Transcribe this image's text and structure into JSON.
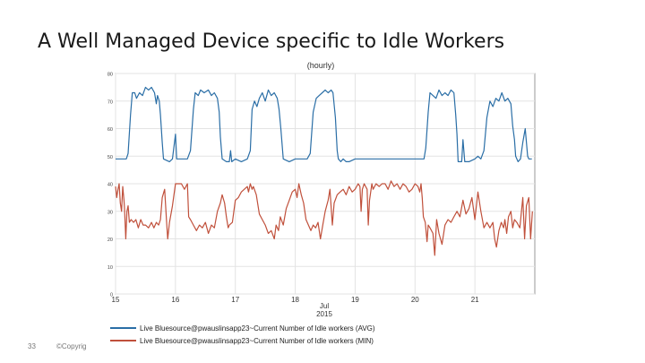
{
  "slide": {
    "title": "A Well Managed Device specific to Idle Workers",
    "page_number": "33",
    "copyright": "©Copyrig"
  },
  "chart_data": {
    "type": "line",
    "title": "(hourly)",
    "xlabel_month": "Jul",
    "xlabel_year": "2015",
    "ylabel": "",
    "ylim": [
      0,
      80
    ],
    "yticks": [
      0,
      10,
      20,
      30,
      40,
      50,
      60,
      70,
      80
    ],
    "xlim": [
      15,
      22
    ],
    "xticks": [
      15,
      16,
      17,
      18,
      19,
      20,
      21
    ],
    "grid": true,
    "legend_position": "bottom",
    "series": [
      {
        "name": "Live Bluesource@pwauslinsapp23~Current Number of Idle workers (AVG)",
        "color": "#2a6ea6",
        "points": [
          [
            15.0,
            49
          ],
          [
            15.18,
            49
          ],
          [
            15.21,
            51
          ],
          [
            15.25,
            65
          ],
          [
            15.28,
            73
          ],
          [
            15.32,
            73
          ],
          [
            15.35,
            71
          ],
          [
            15.4,
            73
          ],
          [
            15.45,
            72
          ],
          [
            15.5,
            75
          ],
          [
            15.55,
            74
          ],
          [
            15.6,
            75
          ],
          [
            15.65,
            73
          ],
          [
            15.68,
            69
          ],
          [
            15.7,
            72
          ],
          [
            15.73,
            70
          ],
          [
            15.75,
            65
          ],
          [
            15.78,
            55
          ],
          [
            15.8,
            49
          ],
          [
            15.9,
            48
          ],
          [
            15.95,
            49
          ],
          [
            16.0,
            58
          ],
          [
            16.02,
            49
          ],
          [
            16.1,
            49
          ],
          [
            16.2,
            49
          ],
          [
            16.25,
            52
          ],
          [
            16.3,
            67
          ],
          [
            16.33,
            73
          ],
          [
            16.38,
            72
          ],
          [
            16.42,
            74
          ],
          [
            16.48,
            73
          ],
          [
            16.55,
            74
          ],
          [
            16.6,
            72
          ],
          [
            16.65,
            73
          ],
          [
            16.7,
            71
          ],
          [
            16.73,
            66
          ],
          [
            16.75,
            57
          ],
          [
            16.78,
            49
          ],
          [
            16.85,
            48
          ],
          [
            16.9,
            48
          ],
          [
            16.92,
            52
          ],
          [
            16.94,
            48
          ],
          [
            17.0,
            49
          ],
          [
            17.1,
            48
          ],
          [
            17.2,
            49
          ],
          [
            17.25,
            52
          ],
          [
            17.28,
            67
          ],
          [
            17.32,
            70
          ],
          [
            17.36,
            68
          ],
          [
            17.4,
            71
          ],
          [
            17.45,
            73
          ],
          [
            17.5,
            70
          ],
          [
            17.55,
            74
          ],
          [
            17.6,
            72
          ],
          [
            17.65,
            73
          ],
          [
            17.7,
            71
          ],
          [
            17.73,
            67
          ],
          [
            17.76,
            60
          ],
          [
            17.8,
            49
          ],
          [
            17.9,
            48
          ],
          [
            18.0,
            49
          ],
          [
            18.1,
            49
          ],
          [
            18.2,
            49
          ],
          [
            18.25,
            51
          ],
          [
            18.3,
            66
          ],
          [
            18.35,
            71
          ],
          [
            18.4,
            72
          ],
          [
            18.45,
            73
          ],
          [
            18.5,
            74
          ],
          [
            18.55,
            73
          ],
          [
            18.6,
            74
          ],
          [
            18.63,
            73
          ],
          [
            18.67,
            64
          ],
          [
            18.7,
            52
          ],
          [
            18.72,
            49
          ],
          [
            18.76,
            48
          ],
          [
            18.8,
            49
          ],
          [
            18.85,
            48
          ],
          [
            18.9,
            48
          ],
          [
            19.0,
            49
          ],
          [
            19.5,
            49
          ],
          [
            20.0,
            49
          ],
          [
            20.1,
            49
          ],
          [
            20.15,
            49
          ],
          [
            20.18,
            53
          ],
          [
            20.22,
            66
          ],
          [
            20.25,
            73
          ],
          [
            20.3,
            72
          ],
          [
            20.35,
            71
          ],
          [
            20.4,
            74
          ],
          [
            20.45,
            72
          ],
          [
            20.5,
            73
          ],
          [
            20.55,
            72
          ],
          [
            20.6,
            74
          ],
          [
            20.65,
            73
          ],
          [
            20.68,
            65
          ],
          [
            20.7,
            58
          ],
          [
            20.72,
            48
          ],
          [
            20.78,
            48
          ],
          [
            20.8,
            56
          ],
          [
            20.83,
            48
          ],
          [
            20.9,
            48
          ],
          [
            21.0,
            49
          ],
          [
            21.05,
            50
          ],
          [
            21.1,
            49
          ],
          [
            21.15,
            52
          ],
          [
            21.2,
            64
          ],
          [
            21.25,
            70
          ],
          [
            21.3,
            68
          ],
          [
            21.35,
            71
          ],
          [
            21.4,
            70
          ],
          [
            21.45,
            73
          ],
          [
            21.5,
            70
          ],
          [
            21.55,
            71
          ],
          [
            21.6,
            69
          ],
          [
            21.63,
            61
          ],
          [
            21.66,
            56
          ],
          [
            21.68,
            50
          ],
          [
            21.72,
            48
          ],
          [
            21.76,
            49
          ],
          [
            21.8,
            55
          ],
          [
            21.84,
            60
          ],
          [
            21.88,
            50
          ],
          [
            21.9,
            49
          ],
          [
            21.95,
            49
          ]
        ]
      },
      {
        "name": "Live Bluesource@pwauslinsapp23~Current Number of Idle workers (MIN)",
        "color": "#c0503b",
        "points": [
          [
            15.0,
            39
          ],
          [
            15.02,
            35
          ],
          [
            15.04,
            38
          ],
          [
            15.06,
            40
          ],
          [
            15.08,
            33
          ],
          [
            15.1,
            30
          ],
          [
            15.12,
            39
          ],
          [
            15.14,
            34
          ],
          [
            15.15,
            31
          ],
          [
            15.17,
            20
          ],
          [
            15.19,
            30
          ],
          [
            15.21,
            32
          ],
          [
            15.23,
            26
          ],
          [
            15.26,
            27
          ],
          [
            15.3,
            26
          ],
          [
            15.34,
            27
          ],
          [
            15.38,
            24
          ],
          [
            15.42,
            27
          ],
          [
            15.46,
            25
          ],
          [
            15.5,
            25
          ],
          [
            15.55,
            24
          ],
          [
            15.6,
            26
          ],
          [
            15.64,
            24
          ],
          [
            15.68,
            26
          ],
          [
            15.72,
            25
          ],
          [
            15.75,
            27
          ],
          [
            15.78,
            35
          ],
          [
            15.82,
            38
          ],
          [
            15.85,
            27
          ],
          [
            15.87,
            20
          ],
          [
            15.9,
            26
          ],
          [
            15.95,
            32
          ],
          [
            16.0,
            40
          ],
          [
            16.05,
            40
          ],
          [
            16.1,
            40
          ],
          [
            16.15,
            38
          ],
          [
            16.2,
            40
          ],
          [
            16.22,
            28
          ],
          [
            16.25,
            27
          ],
          [
            16.3,
            25
          ],
          [
            16.35,
            23
          ],
          [
            16.4,
            25
          ],
          [
            16.45,
            24
          ],
          [
            16.5,
            26
          ],
          [
            16.55,
            22
          ],
          [
            16.6,
            25
          ],
          [
            16.65,
            24
          ],
          [
            16.7,
            30
          ],
          [
            16.75,
            33
          ],
          [
            16.78,
            36
          ],
          [
            16.82,
            33
          ],
          [
            16.85,
            28
          ],
          [
            16.88,
            24
          ],
          [
            16.9,
            25
          ],
          [
            16.95,
            26
          ],
          [
            17.0,
            34
          ],
          [
            17.05,
            35
          ],
          [
            17.1,
            37
          ],
          [
            17.15,
            38
          ],
          [
            17.2,
            39
          ],
          [
            17.22,
            37
          ],
          [
            17.25,
            40
          ],
          [
            17.28,
            38
          ],
          [
            17.3,
            39
          ],
          [
            17.35,
            36
          ],
          [
            17.4,
            29
          ],
          [
            17.45,
            27
          ],
          [
            17.5,
            25
          ],
          [
            17.55,
            22
          ],
          [
            17.6,
            23
          ],
          [
            17.65,
            20
          ],
          [
            17.68,
            25
          ],
          [
            17.72,
            23
          ],
          [
            17.75,
            28
          ],
          [
            17.8,
            25
          ],
          [
            17.85,
            31
          ],
          [
            17.9,
            34
          ],
          [
            17.95,
            37
          ],
          [
            18.0,
            38
          ],
          [
            18.03,
            35
          ],
          [
            18.06,
            40
          ],
          [
            18.1,
            36
          ],
          [
            18.14,
            33
          ],
          [
            18.18,
            27
          ],
          [
            18.22,
            25
          ],
          [
            18.26,
            23
          ],
          [
            18.3,
            25
          ],
          [
            18.34,
            24
          ],
          [
            18.38,
            26
          ],
          [
            18.42,
            20
          ],
          [
            18.46,
            25
          ],
          [
            18.5,
            30
          ],
          [
            18.55,
            34
          ],
          [
            18.58,
            38
          ],
          [
            18.62,
            25
          ],
          [
            18.65,
            33
          ],
          [
            18.7,
            36
          ],
          [
            18.75,
            37
          ],
          [
            18.8,
            38
          ],
          [
            18.85,
            36
          ],
          [
            18.9,
            39
          ],
          [
            18.95,
            37
          ],
          [
            19.0,
            38
          ],
          [
            19.05,
            40
          ],
          [
            19.08,
            39
          ],
          [
            19.1,
            30
          ],
          [
            19.12,
            38
          ],
          [
            19.15,
            40
          ],
          [
            19.2,
            38
          ],
          [
            19.22,
            25
          ],
          [
            19.24,
            34
          ],
          [
            19.28,
            40
          ],
          [
            19.3,
            38
          ],
          [
            19.35,
            40
          ],
          [
            19.4,
            39
          ],
          [
            19.45,
            40
          ],
          [
            19.5,
            40
          ],
          [
            19.55,
            38
          ],
          [
            19.6,
            41
          ],
          [
            19.65,
            39
          ],
          [
            19.7,
            40
          ],
          [
            19.75,
            38
          ],
          [
            19.8,
            40
          ],
          [
            19.85,
            39
          ],
          [
            19.9,
            37
          ],
          [
            19.95,
            38
          ],
          [
            20.0,
            40
          ],
          [
            20.05,
            39
          ],
          [
            20.08,
            37
          ],
          [
            20.1,
            40
          ],
          [
            20.12,
            35
          ],
          [
            20.14,
            28
          ],
          [
            20.17,
            26
          ],
          [
            20.2,
            19
          ],
          [
            20.22,
            25
          ],
          [
            20.25,
            24
          ],
          [
            20.3,
            22
          ],
          [
            20.33,
            14
          ],
          [
            20.36,
            27
          ],
          [
            20.4,
            22
          ],
          [
            20.45,
            18
          ],
          [
            20.5,
            25
          ],
          [
            20.55,
            27
          ],
          [
            20.6,
            26
          ],
          [
            20.65,
            28
          ],
          [
            20.7,
            30
          ],
          [
            20.75,
            28
          ],
          [
            20.8,
            34
          ],
          [
            20.85,
            29
          ],
          [
            20.9,
            31
          ],
          [
            20.95,
            35
          ],
          [
            21.0,
            27
          ],
          [
            21.05,
            37
          ],
          [
            21.1,
            30
          ],
          [
            21.15,
            24
          ],
          [
            21.2,
            26
          ],
          [
            21.25,
            24
          ],
          [
            21.3,
            26
          ],
          [
            21.33,
            20
          ],
          [
            21.36,
            17
          ],
          [
            21.4,
            23
          ],
          [
            21.44,
            26
          ],
          [
            21.48,
            24
          ],
          [
            21.5,
            27
          ],
          [
            21.53,
            22
          ],
          [
            21.56,
            28
          ],
          [
            21.6,
            30
          ],
          [
            21.63,
            24
          ],
          [
            21.66,
            27
          ],
          [
            21.7,
            26
          ],
          [
            21.75,
            24
          ],
          [
            21.8,
            35
          ],
          [
            21.83,
            20
          ],
          [
            21.86,
            32
          ],
          [
            21.9,
            35
          ],
          [
            21.93,
            20
          ],
          [
            21.96,
            30
          ]
        ]
      }
    ]
  }
}
